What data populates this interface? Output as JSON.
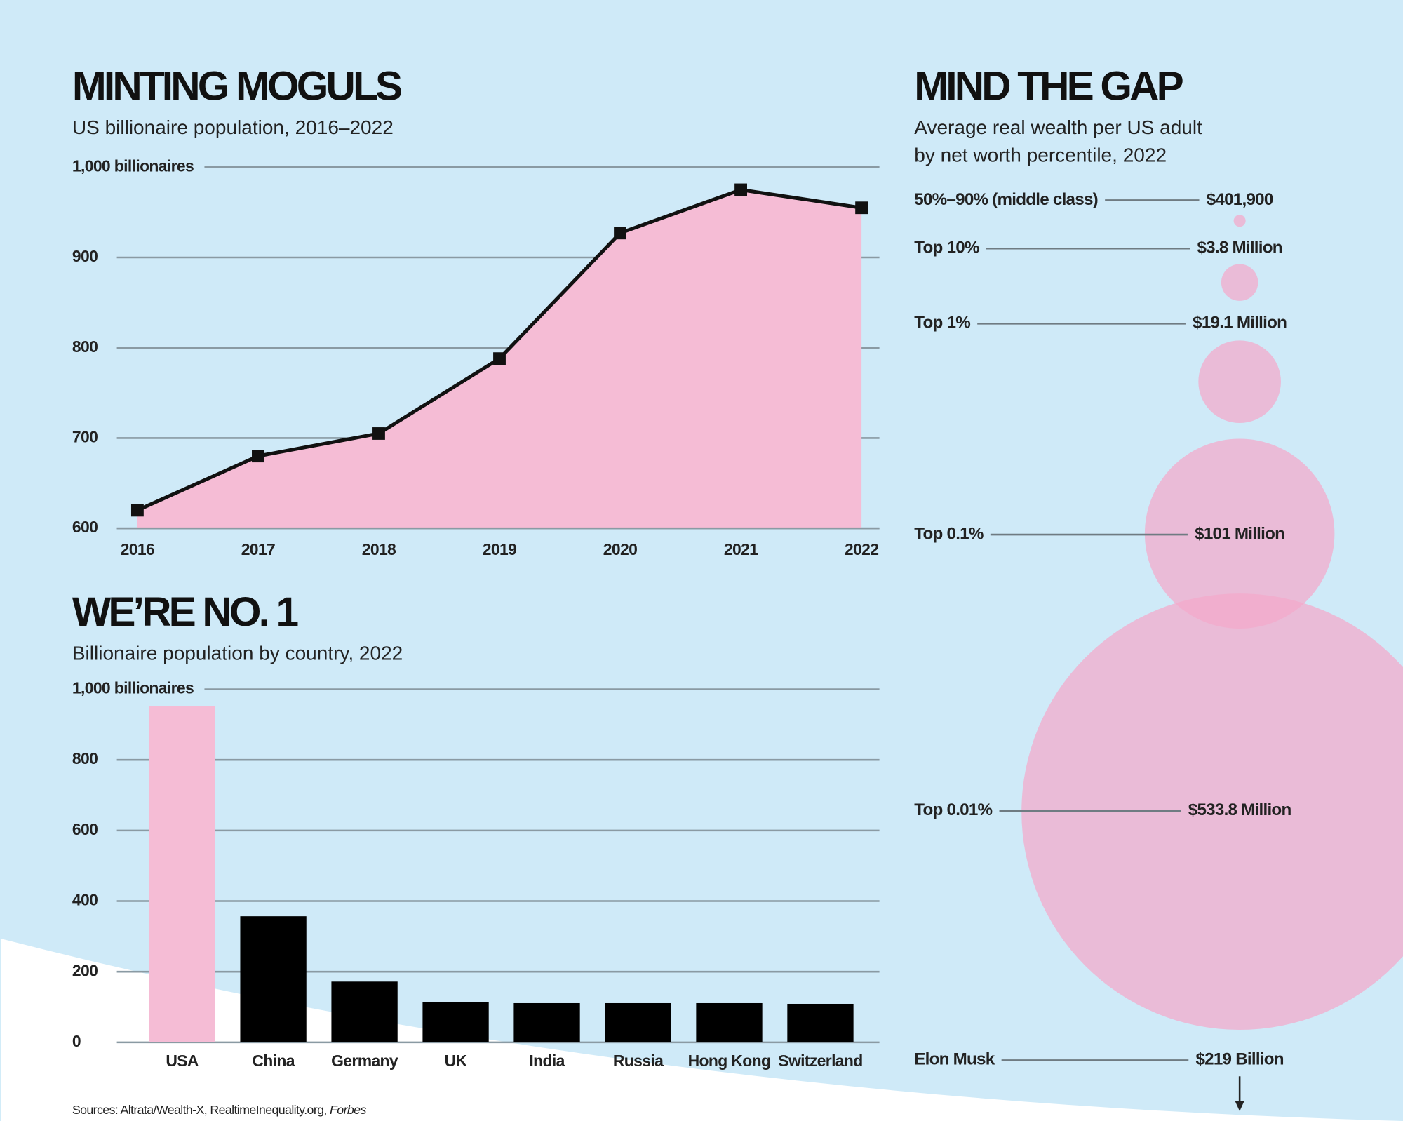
{
  "chart_data": [
    {
      "type": "area",
      "title": "MINTING MOGULS",
      "subtitle": "US billionaire population, 2016–2022",
      "categories": [
        "2016",
        "2017",
        "2018",
        "2019",
        "2020",
        "2021",
        "2022"
      ],
      "values": [
        620,
        680,
        705,
        788,
        927,
        975,
        955
      ],
      "color": "#111111",
      "fill": "#f5bcd5",
      "ylim": [
        600,
        1000
      ],
      "yticks": [
        600,
        700,
        800,
        900,
        {
          "value": 1000,
          "label": "1,000 billionaires"
        }
      ],
      "grid": true
    },
    {
      "type": "bar",
      "title": "WE’RE NO. 1",
      "subtitle": "Billionaire population by country, 2022",
      "categories": [
        "USA",
        "China",
        "Germany",
        "UK",
        "India",
        "Russia",
        "Hong Kong",
        "Switzerland"
      ],
      "values": [
        952,
        357,
        172,
        114,
        111,
        111,
        111,
        109
      ],
      "colors": [
        "#f5bcd5",
        "#000000",
        "#000000",
        "#000000",
        "#000000",
        "#000000",
        "#000000",
        "#000000"
      ],
      "ylim": [
        0,
        1000
      ],
      "yticks": [
        0,
        200,
        400,
        600,
        800,
        {
          "value": 1000,
          "label": "1,000 billionaires"
        }
      ],
      "grid": true
    },
    {
      "type": "bubble",
      "title": "MIND THE GAP",
      "subtitle": [
        "Average real wealth per US adult",
        "by net worth percentile, 2022"
      ],
      "categories": [
        "50%–90% (middle class)",
        "Top 10%",
        "Top 1%",
        "Top 0.1%",
        "Top 0.01%",
        "Elon Musk"
      ],
      "values": [
        401900,
        3800000,
        19100000,
        101000000,
        533800000,
        219000000000
      ],
      "value_labels": [
        "$401,900",
        "$3.8 Million",
        "$19.1 Million",
        "$101 Million",
        "$533.8 Million",
        "$219 Billion"
      ],
      "color": "#f4a9ca"
    }
  ],
  "footer": {
    "sources": "Sources: Altrata/Wealth-X, RealtimeInequality.org,",
    "italic": "Forbes"
  }
}
